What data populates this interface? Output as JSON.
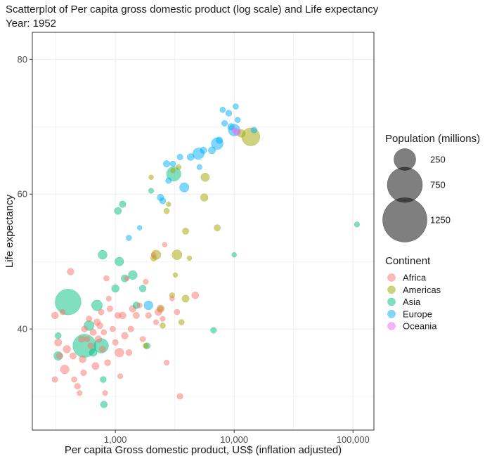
{
  "chart_data": {
    "type": "scatter",
    "title": "Scatterplot of Per capita gross domestic product (log scale) and Life expectancy",
    "subtitle": "Year: 1952",
    "xlabel": "Per capita Gross domestic product, US$ (inflation adjusted)",
    "ylabel": "Life expectancy",
    "x_scale": "log10",
    "xlim": [
      200,
      150000
    ],
    "ylim": [
      25,
      84
    ],
    "x_ticks": [
      1000,
      10000,
      100000
    ],
    "x_tick_labels": [
      "1,000",
      "10,000",
      "100,000"
    ],
    "y_ticks": [
      40,
      60,
      80
    ],
    "y_tick_labels": [
      "40",
      "60",
      "80"
    ],
    "grid": true,
    "legend_position": "right",
    "size_legend": {
      "title": "Population (millions)",
      "values": [
        250,
        750,
        1250
      ],
      "labels": [
        "250",
        "750",
        "1250"
      ]
    },
    "color_legend": {
      "title": "Continent",
      "colors": {
        "Africa": "#F8766D",
        "Americas": "#A3A500",
        "Asia": "#00BF7D",
        "Europe": "#00B0F6",
        "Oceania": "#E76BF3"
      }
    },
    "series": [
      {
        "name": "Africa",
        "color": "#F8766D",
        "points": [
          {
            "x": 310,
            "y": 42,
            "pop": 8
          },
          {
            "x": 310,
            "y": 32.5,
            "pop": 4
          },
          {
            "x": 330,
            "y": 38,
            "pop": 10
          },
          {
            "x": 340,
            "y": 36,
            "pop": 6
          },
          {
            "x": 360,
            "y": 42.5,
            "pop": 3
          },
          {
            "x": 375,
            "y": 34,
            "pop": 20
          },
          {
            "x": 390,
            "y": 37,
            "pop": 12
          },
          {
            "x": 420,
            "y": 48.5,
            "pop": 8
          },
          {
            "x": 440,
            "y": 36,
            "pop": 6
          },
          {
            "x": 450,
            "y": 32.5,
            "pop": 3
          },
          {
            "x": 480,
            "y": 31.5,
            "pop": 4
          },
          {
            "x": 500,
            "y": 30.5,
            "pop": 2
          },
          {
            "x": 520,
            "y": 38.5,
            "pop": 6
          },
          {
            "x": 530,
            "y": 35.5,
            "pop": 9
          },
          {
            "x": 540,
            "y": 33.5,
            "pop": 4
          },
          {
            "x": 550,
            "y": 40,
            "pop": 5
          },
          {
            "x": 580,
            "y": 38.5,
            "pop": 3
          },
          {
            "x": 600,
            "y": 41.5,
            "pop": 4
          },
          {
            "x": 620,
            "y": 37.5,
            "pop": 4
          },
          {
            "x": 650,
            "y": 39.5,
            "pop": 6
          },
          {
            "x": 680,
            "y": 34.5,
            "pop": 10
          },
          {
            "x": 700,
            "y": 41,
            "pop": 7
          },
          {
            "x": 720,
            "y": 38.5,
            "pop": 8
          },
          {
            "x": 740,
            "y": 40.5,
            "pop": 5
          },
          {
            "x": 760,
            "y": 42.5,
            "pop": 4
          },
          {
            "x": 780,
            "y": 37,
            "pop": 5
          },
          {
            "x": 800,
            "y": 39.5,
            "pop": 3
          },
          {
            "x": 820,
            "y": 30.5,
            "pop": 2
          },
          {
            "x": 840,
            "y": 47.5,
            "pop": 3
          },
          {
            "x": 860,
            "y": 35,
            "pop": 5
          },
          {
            "x": 880,
            "y": 44.5,
            "pop": 2
          },
          {
            "x": 900,
            "y": 43,
            "pop": 4
          },
          {
            "x": 950,
            "y": 40,
            "pop": 3
          },
          {
            "x": 1000,
            "y": 38,
            "pop": 4
          },
          {
            "x": 1050,
            "y": 42,
            "pop": 5
          },
          {
            "x": 1080,
            "y": 36.5,
            "pop": 21
          },
          {
            "x": 1100,
            "y": 33,
            "pop": 2
          },
          {
            "x": 1150,
            "y": 42,
            "pop": 9
          },
          {
            "x": 1200,
            "y": 39,
            "pop": 7
          },
          {
            "x": 1250,
            "y": 47.5,
            "pop": 1
          },
          {
            "x": 1300,
            "y": 36.5,
            "pop": 5
          },
          {
            "x": 1350,
            "y": 40,
            "pop": 4
          },
          {
            "x": 1400,
            "y": 43,
            "pop": 8
          },
          {
            "x": 1500,
            "y": 42,
            "pop": 6
          },
          {
            "x": 1600,
            "y": 43.5,
            "pop": 2
          },
          {
            "x": 1700,
            "y": 38.5,
            "pop": 3
          },
          {
            "x": 1800,
            "y": 47,
            "pop": 2
          },
          {
            "x": 1900,
            "y": 42,
            "pop": 4
          },
          {
            "x": 2100,
            "y": 51,
            "pop": 1
          },
          {
            "x": 2200,
            "y": 41,
            "pop": 2
          },
          {
            "x": 2300,
            "y": 42.5,
            "pop": 8
          },
          {
            "x": 2400,
            "y": 43,
            "pop": 12
          },
          {
            "x": 2500,
            "y": 41.5,
            "pop": 2
          },
          {
            "x": 2600,
            "y": 52.5,
            "pop": 1
          },
          {
            "x": 2700,
            "y": 35,
            "pop": 2
          },
          {
            "x": 3000,
            "y": 44.5,
            "pop": 1
          },
          {
            "x": 3300,
            "y": 42.5,
            "pop": 3
          },
          {
            "x": 3500,
            "y": 30,
            "pop": 4
          },
          {
            "x": 4700,
            "y": 45,
            "pop": 9
          }
        ]
      },
      {
        "name": "Americas",
        "color": "#A3A500",
        "points": [
          {
            "x": 1800,
            "y": 37.5,
            "pop": 3
          },
          {
            "x": 2000,
            "y": 62.5,
            "pop": 1
          },
          {
            "x": 2100,
            "y": 50.5,
            "pop": 4
          },
          {
            "x": 2200,
            "y": 51,
            "pop": 26
          },
          {
            "x": 2400,
            "y": 43,
            "pop": 2
          },
          {
            "x": 2500,
            "y": 40.5,
            "pop": 3
          },
          {
            "x": 2700,
            "y": 57.5,
            "pop": 3
          },
          {
            "x": 2800,
            "y": 58.5,
            "pop": 1
          },
          {
            "x": 3000,
            "y": 45,
            "pop": 2
          },
          {
            "x": 3050,
            "y": 63.5,
            "pop": 1
          },
          {
            "x": 3200,
            "y": 48,
            "pop": 1
          },
          {
            "x": 3300,
            "y": 51,
            "pop": 30
          },
          {
            "x": 3400,
            "y": 64,
            "pop": 2
          },
          {
            "x": 3600,
            "y": 41,
            "pop": 3
          },
          {
            "x": 3900,
            "y": 54.5,
            "pop": 6
          },
          {
            "x": 3900,
            "y": 44.5,
            "pop": 10
          },
          {
            "x": 4200,
            "y": 50.5,
            "pop": 1
          },
          {
            "x": 5600,
            "y": 59.5,
            "pop": 12
          },
          {
            "x": 5700,
            "y": 62.5,
            "pop": 18
          },
          {
            "x": 7200,
            "y": 55,
            "pop": 6
          },
          {
            "x": 11500,
            "y": 69,
            "pop": 14
          },
          {
            "x": 13800,
            "y": 68.5,
            "pop": 158
          }
        ]
      },
      {
        "name": "Asia",
        "color": "#00BF7D",
        "points": [
          {
            "x": 330,
            "y": 39,
            "pop": 5
          },
          {
            "x": 330,
            "y": 36,
            "pop": 20
          },
          {
            "x": 400,
            "y": 44,
            "pop": 372
          },
          {
            "x": 550,
            "y": 37.5,
            "pop": 290
          },
          {
            "x": 600,
            "y": 40.5,
            "pop": 30
          },
          {
            "x": 650,
            "y": 36.5,
            "pop": 13
          },
          {
            "x": 700,
            "y": 43.5,
            "pop": 38
          },
          {
            "x": 760,
            "y": 37.5,
            "pop": 90
          },
          {
            "x": 780,
            "y": 51,
            "pop": 22
          },
          {
            "x": 790,
            "y": 32.5,
            "pop": 5
          },
          {
            "x": 800,
            "y": 28.8,
            "pop": 8
          },
          {
            "x": 1000,
            "y": 46,
            "pop": 12
          },
          {
            "x": 1050,
            "y": 57.5,
            "pop": 9
          },
          {
            "x": 1080,
            "y": 50,
            "pop": 20
          },
          {
            "x": 1150,
            "y": 58.5,
            "pop": 7
          },
          {
            "x": 1200,
            "y": 47.5,
            "pop": 10
          },
          {
            "x": 1400,
            "y": 48,
            "pop": 21
          },
          {
            "x": 1500,
            "y": 43.5,
            "pop": 8
          },
          {
            "x": 1700,
            "y": 46,
            "pop": 8
          },
          {
            "x": 1850,
            "y": 37.5,
            "pop": 5
          },
          {
            "x": 2000,
            "y": 60.5,
            "pop": 2
          },
          {
            "x": 3100,
            "y": 63,
            "pop": 86
          },
          {
            "x": 6700,
            "y": 39.8,
            "pop": 4
          },
          {
            "x": 10000,
            "y": 51,
            "pop": 1
          },
          {
            "x": 108000,
            "y": 55.5,
            "pop": 2
          }
        ]
      },
      {
        "name": "Europe",
        "color": "#00B0F6",
        "points": [
          {
            "x": 1300,
            "y": 53.5,
            "pop": 3
          },
          {
            "x": 1600,
            "y": 55,
            "pop": 1
          },
          {
            "x": 1900,
            "y": 43.5,
            "pop": 21
          },
          {
            "x": 2400,
            "y": 59.5,
            "pop": 7
          },
          {
            "x": 2500,
            "y": 59,
            "pop": 5
          },
          {
            "x": 2700,
            "y": 64.5,
            "pop": 7
          },
          {
            "x": 2800,
            "y": 62,
            "pop": 4
          },
          {
            "x": 3050,
            "y": 64.5,
            "pop": 3
          },
          {
            "x": 3500,
            "y": 65.5,
            "pop": 4
          },
          {
            "x": 3800,
            "y": 61,
            "pop": 25
          },
          {
            "x": 4300,
            "y": 65.5,
            "pop": 9
          },
          {
            "x": 5000,
            "y": 66,
            "pop": 47
          },
          {
            "x": 5100,
            "y": 64,
            "pop": 2
          },
          {
            "x": 5500,
            "y": 66.5,
            "pop": 7
          },
          {
            "x": 6500,
            "y": 66.5,
            "pop": 10
          },
          {
            "x": 7200,
            "y": 67.5,
            "pop": 50
          },
          {
            "x": 7500,
            "y": 68,
            "pop": 7
          },
          {
            "x": 8000,
            "y": 72.5,
            "pop": 3
          },
          {
            "x": 8300,
            "y": 70.5,
            "pop": 4
          },
          {
            "x": 9000,
            "y": 72,
            "pop": 5
          },
          {
            "x": 9400,
            "y": 70,
            "pop": 7
          },
          {
            "x": 10000,
            "y": 69.5,
            "pop": 50
          },
          {
            "x": 10300,
            "y": 73,
            "pop": 3
          },
          {
            "x": 10700,
            "y": 71,
            "pop": 3
          },
          {
            "x": 14700,
            "y": 69.5,
            "pop": 5
          }
        ]
      },
      {
        "name": "Oceania",
        "color": "#E76BF3",
        "points": [
          {
            "x": 10000,
            "y": 69.5,
            "pop": 2
          },
          {
            "x": 10600,
            "y": 69.2,
            "pop": 9
          }
        ]
      }
    ]
  }
}
